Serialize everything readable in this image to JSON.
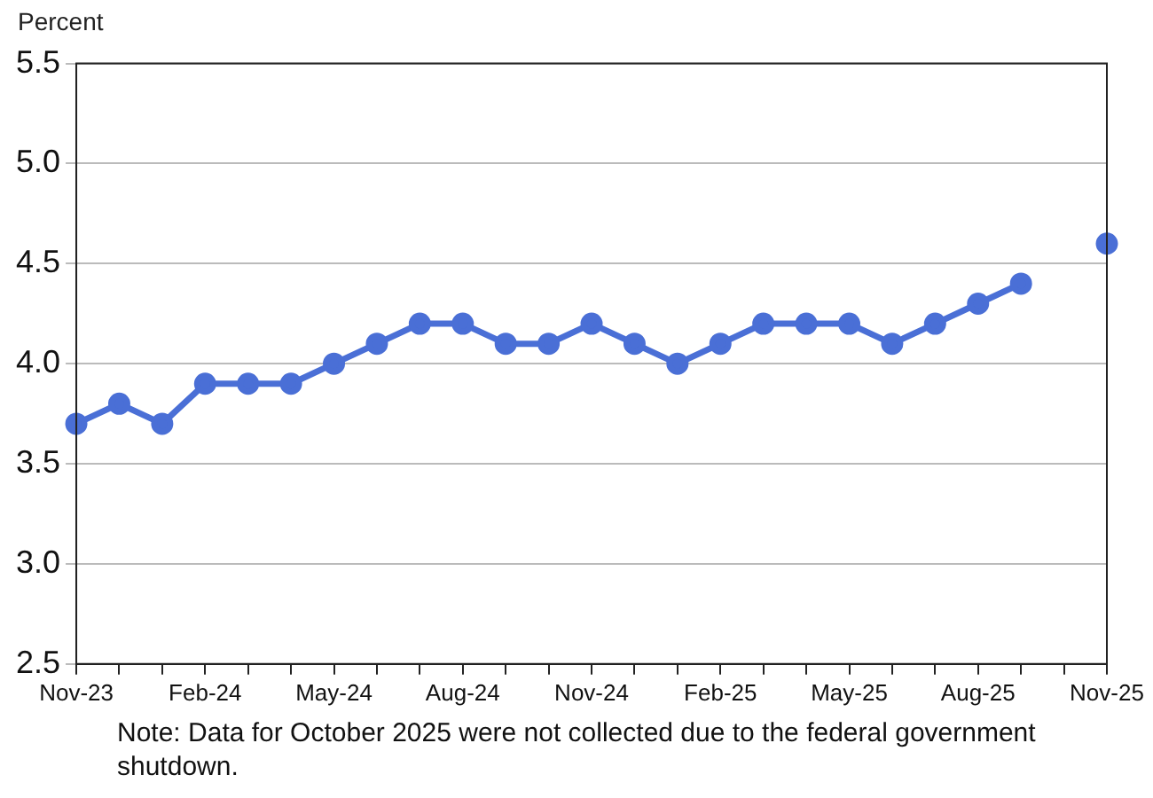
{
  "chart_data": {
    "type": "line",
    "ylabel": "Percent",
    "categories": [
      "Nov-23",
      null,
      null,
      "Feb-24",
      null,
      null,
      "May-24",
      null,
      null,
      "Aug-24",
      null,
      null,
      "Nov-24",
      null,
      null,
      "Feb-25",
      null,
      null,
      "May-25",
      null,
      null,
      "Aug-25",
      null,
      null,
      "Nov-25"
    ],
    "series": [
      {
        "color": "#4a6fd6",
        "values": [
          3.7,
          3.8,
          3.7,
          3.9,
          3.9,
          3.9,
          4.0,
          4.1,
          4.2,
          4.2,
          4.1,
          4.1,
          4.2,
          4.1,
          4.0,
          4.1,
          4.2,
          4.2,
          4.2,
          4.1,
          4.2,
          4.3,
          4.4,
          null,
          4.6
        ]
      }
    ],
    "ylim": [
      2.5,
      5.5
    ],
    "yticks": [
      2.5,
      {
        "value": 3,
        "label": "3.0"
      },
      3.5,
      {
        "value": 4,
        "label": "4.0"
      },
      4.5,
      {
        "value": 5,
        "label": "5.0"
      },
      5.5
    ],
    "grid": "y",
    "marker": "circle",
    "line_style": "solid",
    "annotations": [
      "Note: Data for October 2025 were not collected due to the federal government shutdown."
    ]
  }
}
